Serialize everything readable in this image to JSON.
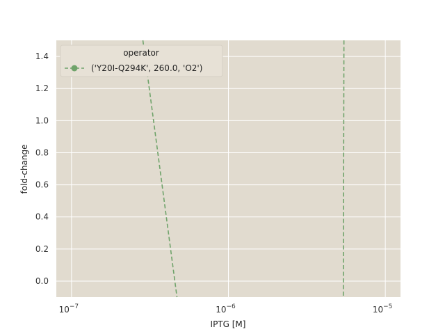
{
  "chart_data": {
    "type": "line",
    "xlabel": "IPTG [M]",
    "ylabel": "fold-change",
    "xscale": "log",
    "xlim": [
      8e-08,
      1.25e-05
    ],
    "ylim": [
      -0.1,
      1.5
    ],
    "x_ticks": [
      {
        "value": 1e-07,
        "mantissa": "10",
        "exp": "−7"
      },
      {
        "value": 1e-06,
        "mantissa": "10",
        "exp": "−6"
      },
      {
        "value": 1e-05,
        "mantissa": "10",
        "exp": "−5"
      }
    ],
    "y_ticks": [
      0.0,
      0.2,
      0.4,
      0.6,
      0.8,
      1.0,
      1.2,
      1.4
    ],
    "y_tick_labels": [
      "0.0",
      "0.2",
      "0.4",
      "0.6",
      "0.8",
      "1.0",
      "1.2",
      "1.4"
    ],
    "grid": true,
    "legend": {
      "title": "operator",
      "placement": "top-left",
      "entries": [
        "('Y20I-Q294K', 260.0, 'O2')"
      ]
    },
    "series": [
      {
        "name": "('Y20I-Q294K', 260.0, 'O2')",
        "color": "#6fa36a",
        "style": "dashed",
        "segments": [
          [
            {
              "x": 2.85e-07,
              "y": 1.5
            },
            {
              "x": 4.7e-07,
              "y": -0.1
            }
          ],
          [
            {
              "x": 5.45e-06,
              "y": 1.5
            },
            {
              "x": 5.4e-06,
              "y": -0.1
            }
          ]
        ]
      }
    ],
    "colors": {
      "background": "#e1dbcf",
      "grid": "#ffffff",
      "series": "#6fa36a"
    }
  }
}
